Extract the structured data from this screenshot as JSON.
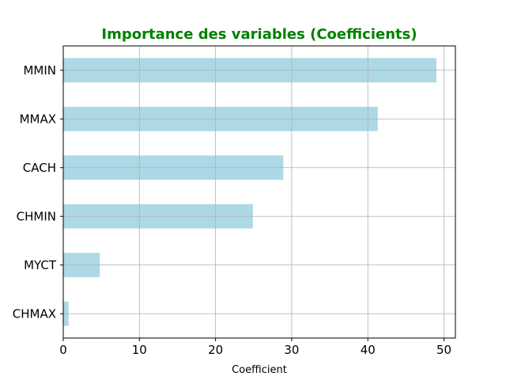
{
  "chart_data": {
    "type": "bar",
    "orientation": "horizontal",
    "title": "Importance des variables (Coefficients)",
    "xlabel": "Coefficient",
    "ylabel": "",
    "categories": [
      "MMIN",
      "MMAX",
      "CACH",
      "CHMIN",
      "MYCT",
      "CHMAX"
    ],
    "values": [
      49.0,
      41.3,
      28.9,
      24.9,
      4.8,
      0.7
    ],
    "xlim": [
      0,
      51.5
    ],
    "xticks": [
      0,
      10,
      20,
      30,
      40,
      50
    ],
    "grid": true,
    "legend": "none",
    "bar_color": "#add8e6",
    "title_color": "#008000",
    "grid_color": "#b0b0b0"
  }
}
